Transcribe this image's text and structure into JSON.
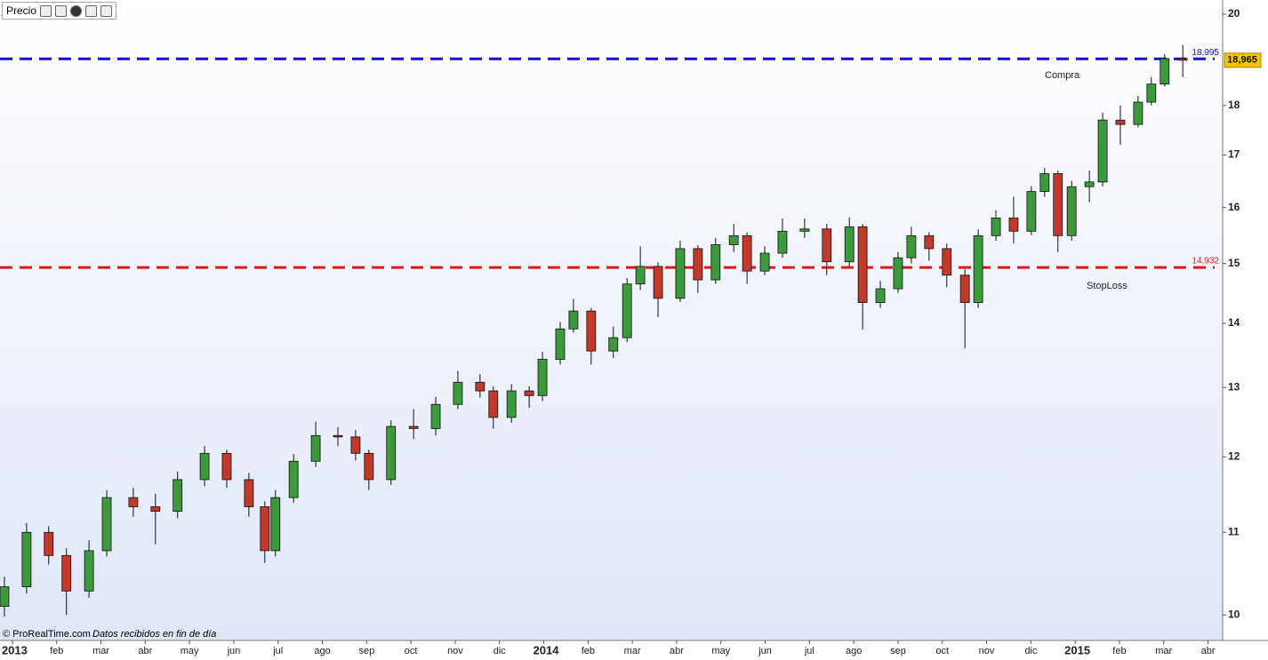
{
  "chart_data": {
    "type": "candlestick",
    "title": "Precio",
    "log_scale": true,
    "up_color": "#3c9a3c",
    "down_color": "#c0392b",
    "xlim": [
      -0.28,
      27.29
    ],
    "ylim": [
      9.72,
      20.33
    ],
    "yticks": [
      10,
      11,
      12,
      13,
      14,
      15,
      16,
      17,
      18,
      20
    ],
    "xticks": [
      {
        "value": 0,
        "label": "2013"
      },
      {
        "value": 1,
        "label": "feb"
      },
      {
        "value": 2,
        "label": "mar"
      },
      {
        "value": 3,
        "label": "abr"
      },
      {
        "value": 4,
        "label": "may"
      },
      {
        "value": 5,
        "label": "jun"
      },
      {
        "value": 6,
        "label": "jul"
      },
      {
        "value": 7,
        "label": "ago"
      },
      {
        "value": 8,
        "label": "sep"
      },
      {
        "value": 9,
        "label": "oct"
      },
      {
        "value": 10,
        "label": "nov"
      },
      {
        "value": 11,
        "label": "dic"
      },
      {
        "value": 12,
        "label": "2014"
      },
      {
        "value": 13,
        "label": "feb"
      },
      {
        "value": 14,
        "label": "mar"
      },
      {
        "value": 15,
        "label": "abr"
      },
      {
        "value": 16,
        "label": "may"
      },
      {
        "value": 17,
        "label": "jun"
      },
      {
        "value": 18,
        "label": "jul"
      },
      {
        "value": 19,
        "label": "ago"
      },
      {
        "value": 20,
        "label": "sep"
      },
      {
        "value": 21,
        "label": "oct"
      },
      {
        "value": 22,
        "label": "nov"
      },
      {
        "value": 23,
        "label": "dic"
      },
      {
        "value": 24,
        "label": "2015"
      },
      {
        "value": 25,
        "label": "feb"
      },
      {
        "value": 26,
        "label": "mar"
      },
      {
        "value": 27,
        "label": "abr"
      }
    ],
    "x": [
      -0.18,
      0.32,
      0.82,
      1.22,
      1.73,
      2.13,
      2.73,
      3.23,
      3.73,
      4.34,
      4.84,
      5.34,
      5.7,
      5.94,
      6.35,
      6.85,
      7.35,
      7.75,
      8.05,
      8.55,
      9.06,
      9.56,
      10.06,
      10.56,
      10.86,
      11.27,
      11.67,
      11.97,
      12.37,
      12.67,
      13.07,
      13.57,
      13.88,
      14.18,
      14.58,
      15.08,
      15.48,
      15.88,
      16.29,
      16.59,
      16.99,
      17.39,
      17.89,
      18.39,
      18.9,
      19.2,
      19.6,
      20.0,
      20.3,
      20.7,
      21.1,
      21.51,
      21.81,
      22.21,
      22.61,
      23.01,
      23.31,
      23.61,
      23.92,
      24.32,
      24.62,
      25.02,
      25.42,
      25.72,
      26.02,
      26.43
    ],
    "open": [
      10.1,
      10.33,
      11.0,
      10.71,
      10.28,
      10.77,
      11.45,
      11.33,
      11.27,
      11.69,
      12.05,
      11.69,
      11.33,
      10.77,
      11.45,
      11.94,
      12.3,
      12.28,
      12.05,
      11.69,
      12.43,
      12.4,
      12.75,
      13.08,
      12.95,
      12.56,
      12.95,
      12.88,
      13.43,
      13.91,
      14.2,
      13.56,
      13.77,
      14.65,
      14.95,
      14.41,
      15.26,
      14.72,
      15.33,
      15.49,
      14.87,
      15.18,
      15.57,
      15.61,
      15.03,
      15.65,
      14.34,
      14.57,
      15.1,
      15.49,
      15.26,
      14.8,
      14.34,
      15.49,
      15.81,
      15.57,
      16.3,
      16.64,
      15.49,
      16.39,
      16.48,
      17.7,
      17.61,
      18.07,
      18.45,
      19.0
    ],
    "high": [
      10.45,
      11.12,
      11.08,
      10.8,
      10.9,
      11.55,
      11.58,
      11.5,
      11.8,
      12.15,
      12.1,
      11.78,
      11.4,
      11.55,
      12.04,
      12.5,
      12.42,
      12.38,
      12.1,
      12.52,
      12.68,
      12.86,
      13.25,
      13.2,
      13.02,
      13.05,
      13.02,
      13.55,
      14.02,
      14.4,
      14.25,
      13.95,
      14.75,
      15.3,
      15.02,
      15.4,
      15.32,
      15.45,
      15.7,
      15.55,
      15.3,
      15.8,
      15.8,
      15.7,
      15.82,
      15.7,
      14.7,
      15.2,
      15.65,
      15.55,
      15.35,
      14.9,
      15.6,
      15.95,
      16.2,
      16.4,
      16.75,
      16.7,
      16.5,
      16.7,
      17.85,
      18.0,
      18.2,
      18.6,
      19.1,
      19.3
    ],
    "low": [
      9.98,
      10.25,
      10.6,
      10.0,
      10.2,
      10.7,
      11.2,
      10.85,
      11.18,
      11.6,
      11.58,
      11.2,
      10.62,
      10.7,
      11.38,
      11.86,
      12.15,
      11.95,
      11.55,
      11.62,
      12.25,
      12.3,
      12.68,
      12.85,
      12.4,
      12.48,
      12.7,
      12.8,
      13.35,
      13.85,
      13.35,
      13.45,
      13.7,
      14.55,
      14.1,
      14.35,
      14.5,
      14.65,
      15.2,
      14.65,
      14.8,
      15.1,
      15.45,
      14.8,
      14.95,
      13.9,
      14.25,
      14.5,
      15.0,
      15.05,
      14.6,
      13.6,
      14.25,
      15.4,
      15.35,
      15.5,
      16.2,
      15.2,
      15.4,
      16.1,
      16.4,
      17.2,
      17.55,
      18.0,
      18.4,
      18.6
    ],
    "close": [
      10.33,
      11.0,
      10.71,
      10.28,
      10.77,
      11.45,
      11.33,
      11.27,
      11.69,
      12.05,
      11.69,
      11.33,
      10.77,
      11.45,
      11.94,
      12.3,
      12.28,
      12.05,
      11.69,
      12.43,
      12.4,
      12.75,
      13.08,
      12.95,
      12.56,
      12.95,
      12.88,
      13.43,
      13.91,
      14.2,
      13.56,
      13.77,
      14.65,
      14.95,
      14.41,
      15.26,
      14.72,
      15.33,
      15.49,
      14.87,
      15.18,
      15.57,
      15.61,
      15.03,
      15.65,
      14.34,
      14.57,
      15.1,
      15.49,
      15.26,
      14.8,
      14.34,
      15.49,
      15.81,
      15.57,
      16.3,
      16.64,
      15.49,
      16.39,
      16.48,
      17.7,
      17.61,
      18.07,
      18.45,
      19.0,
      18.965
    ],
    "last_price": {
      "value": 18.965,
      "label": "18,965"
    },
    "levels": [
      {
        "name": "Compra",
        "value": 18.995,
        "label": "18,995",
        "color": "#1010d8"
      },
      {
        "name": "StopLoss",
        "value": 14.932,
        "label": "14,932",
        "color": "#e01818"
      }
    ]
  },
  "footer": {
    "source": "© ProRealTime.com",
    "note": "Datos recibidos en fin de día"
  }
}
